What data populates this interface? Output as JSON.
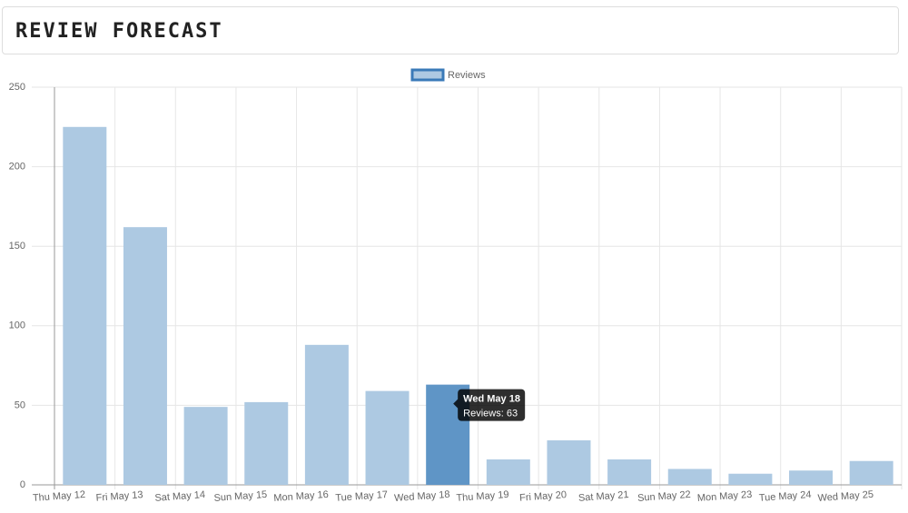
{
  "chart_data": {
    "type": "bar",
    "title": "REVIEW FORECAST",
    "categories": [
      "Thu May 12",
      "Fri May 13",
      "Sat May 14",
      "Sun May 15",
      "Mon May 16",
      "Tue May 17",
      "Wed May 18",
      "Thu May 19",
      "Fri May 20",
      "Sat May 21",
      "Sun May 22",
      "Mon May 23",
      "Tue May 24",
      "Wed May 25"
    ],
    "series": [
      {
        "name": "Reviews",
        "color": "#adc9e2",
        "border_color": "#3a7ab8",
        "values": [
          225,
          162,
          49,
          52,
          88,
          59,
          63,
          16,
          28,
          16,
          10,
          7,
          9,
          15
        ]
      }
    ],
    "ylim": [
      0,
      250
    ],
    "yticks": [
      0,
      50,
      100,
      150,
      200,
      250
    ],
    "grid": true,
    "legend": "top",
    "hover": {
      "index": 6,
      "color": "#5f95c6",
      "tooltip_title": "Wed May 18",
      "tooltip_text": "Reviews: 63"
    }
  }
}
